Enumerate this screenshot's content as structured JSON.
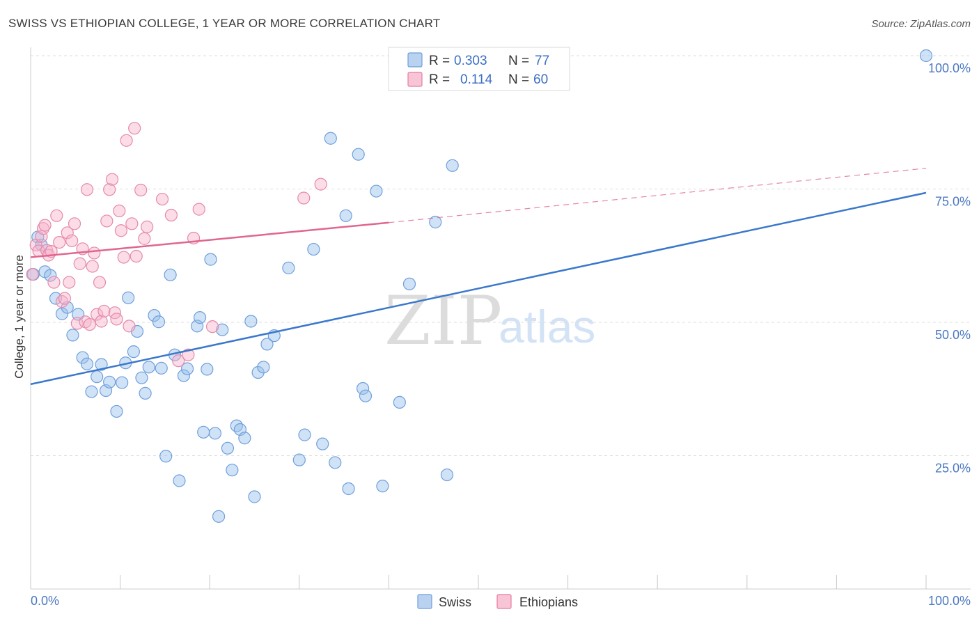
{
  "title": "SWISS VS ETHIOPIAN COLLEGE, 1 YEAR OR MORE CORRELATION CHART",
  "source": "Source: ZipAtlas.com",
  "watermark": {
    "zip": "ZIP",
    "atlas": "atlas"
  },
  "legend": {
    "r_label": "R =",
    "n_label": "N =",
    "rows": [
      {
        "name": "Swiss",
        "r": "0.303",
        "n": "77",
        "color": "#6f9fdc",
        "fill": "#b9d2f0"
      },
      {
        "name": "Ethiopians",
        "r": "0.114",
        "n": "60",
        "color": "#e77ba0",
        "fill": "#f8c5d6"
      }
    ]
  },
  "chart_data": {
    "type": "scatter",
    "title": "SWISS VS ETHIOPIAN COLLEGE, 1 YEAR OR MORE CORRELATION CHART",
    "xlabel": "",
    "ylabel": "College, 1 year or more",
    "xlim": [
      0,
      100
    ],
    "ylim": [
      0,
      100
    ],
    "x_tick_labels": [
      "0.0%",
      "100.0%"
    ],
    "y_tick_labels": [
      "25.0%",
      "50.0%",
      "75.0%",
      "100.0%"
    ],
    "y_ticks": [
      25,
      50,
      75,
      100
    ],
    "grid": true,
    "series": [
      {
        "name": "Swiss",
        "color": "#3a78cc",
        "trend": {
          "x0": 0,
          "y0": 38.4,
          "x1": 100,
          "y1": 74.3
        },
        "points": [
          [
            0.3,
            59.0
          ],
          [
            0.8,
            66.0
          ],
          [
            1.2,
            64.5
          ],
          [
            1.6,
            59.5
          ],
          [
            2.2,
            58.8
          ],
          [
            2.8,
            54.5
          ],
          [
            3.5,
            51.6
          ],
          [
            4.1,
            52.8
          ],
          [
            4.7,
            47.6
          ],
          [
            5.3,
            51.5
          ],
          [
            5.8,
            43.4
          ],
          [
            6.3,
            42.2
          ],
          [
            6.8,
            37.0
          ],
          [
            7.4,
            39.8
          ],
          [
            7.9,
            42.1
          ],
          [
            8.4,
            37.2
          ],
          [
            8.8,
            38.8
          ],
          [
            9.6,
            33.3
          ],
          [
            10.2,
            38.7
          ],
          [
            10.6,
            42.4
          ],
          [
            10.9,
            54.6
          ],
          [
            11.5,
            44.5
          ],
          [
            11.9,
            48.3
          ],
          [
            12.4,
            39.6
          ],
          [
            12.8,
            36.7
          ],
          [
            13.2,
            41.6
          ],
          [
            13.8,
            51.3
          ],
          [
            14.3,
            50.1
          ],
          [
            14.6,
            41.4
          ],
          [
            15.1,
            24.9
          ],
          [
            15.6,
            58.9
          ],
          [
            16.1,
            43.9
          ],
          [
            16.6,
            20.3
          ],
          [
            17.1,
            40.0
          ],
          [
            17.5,
            41.3
          ],
          [
            18.6,
            49.3
          ],
          [
            18.9,
            50.9
          ],
          [
            19.3,
            29.4
          ],
          [
            19.7,
            41.2
          ],
          [
            20.1,
            61.8
          ],
          [
            20.6,
            29.2
          ],
          [
            21.0,
            13.6
          ],
          [
            21.4,
            48.6
          ],
          [
            22.0,
            26.4
          ],
          [
            22.5,
            22.3
          ],
          [
            23.0,
            30.6
          ],
          [
            23.4,
            29.9
          ],
          [
            23.9,
            28.3
          ],
          [
            24.6,
            50.2
          ],
          [
            25.0,
            17.3
          ],
          [
            25.4,
            40.6
          ],
          [
            26.0,
            41.6
          ],
          [
            26.4,
            45.9
          ],
          [
            27.2,
            47.5
          ],
          [
            28.8,
            60.2
          ],
          [
            30.0,
            24.2
          ],
          [
            30.6,
            28.9
          ],
          [
            31.6,
            63.7
          ],
          [
            32.6,
            27.2
          ],
          [
            33.5,
            84.5
          ],
          [
            34.0,
            23.7
          ],
          [
            35.2,
            70.0
          ],
          [
            35.5,
            18.8
          ],
          [
            36.6,
            81.5
          ],
          [
            37.1,
            37.6
          ],
          [
            37.4,
            36.2
          ],
          [
            38.6,
            74.6
          ],
          [
            39.3,
            19.3
          ],
          [
            41.2,
            35.0
          ],
          [
            42.3,
            57.2
          ],
          [
            45.2,
            68.8
          ],
          [
            46.5,
            21.4
          ],
          [
            47.1,
            79.4
          ],
          [
            100.0,
            100.0
          ]
        ]
      },
      {
        "name": "Ethiopians",
        "color": "#e0668f",
        "trend": {
          "x0": 0,
          "y0": 62.2,
          "x1": 40,
          "y1": 68.7,
          "dash_to": {
            "x": 100,
            "y": 78.9
          }
        },
        "points": [
          [
            0.2,
            59.0
          ],
          [
            0.6,
            64.5
          ],
          [
            0.9,
            63.4
          ],
          [
            1.2,
            66.1
          ],
          [
            1.4,
            67.6
          ],
          [
            1.6,
            68.2
          ],
          [
            1.8,
            63.5
          ],
          [
            2.0,
            62.6
          ],
          [
            2.3,
            63.3
          ],
          [
            2.6,
            57.5
          ],
          [
            2.9,
            70.0
          ],
          [
            3.2,
            65.0
          ],
          [
            3.5,
            53.9
          ],
          [
            3.8,
            54.5
          ],
          [
            4.1,
            66.8
          ],
          [
            4.3,
            57.5
          ],
          [
            4.6,
            65.3
          ],
          [
            4.9,
            68.5
          ],
          [
            5.2,
            49.8
          ],
          [
            5.5,
            61.0
          ],
          [
            5.8,
            63.8
          ],
          [
            6.1,
            50.1
          ],
          [
            6.3,
            74.9
          ],
          [
            6.6,
            49.6
          ],
          [
            6.9,
            60.5
          ],
          [
            7.1,
            63.0
          ],
          [
            7.4,
            51.5
          ],
          [
            7.7,
            57.5
          ],
          [
            7.9,
            50.2
          ],
          [
            8.2,
            52.1
          ],
          [
            8.5,
            69.0
          ],
          [
            8.8,
            74.9
          ],
          [
            9.1,
            76.8
          ],
          [
            9.4,
            51.8
          ],
          [
            9.6,
            50.6
          ],
          [
            9.9,
            70.9
          ],
          [
            10.1,
            67.2
          ],
          [
            10.4,
            62.2
          ],
          [
            10.7,
            84.1
          ],
          [
            11.0,
            49.3
          ],
          [
            11.3,
            68.5
          ],
          [
            11.6,
            86.4
          ],
          [
            11.8,
            62.4
          ],
          [
            12.3,
            74.8
          ],
          [
            12.7,
            65.7
          ],
          [
            13.0,
            67.9
          ],
          [
            14.7,
            73.1
          ],
          [
            15.7,
            70.1
          ],
          [
            16.5,
            42.8
          ],
          [
            17.6,
            43.9
          ],
          [
            18.2,
            65.8
          ],
          [
            18.8,
            71.2
          ],
          [
            20.3,
            49.2
          ],
          [
            30.5,
            73.3
          ],
          [
            32.4,
            75.9
          ]
        ]
      }
    ]
  }
}
